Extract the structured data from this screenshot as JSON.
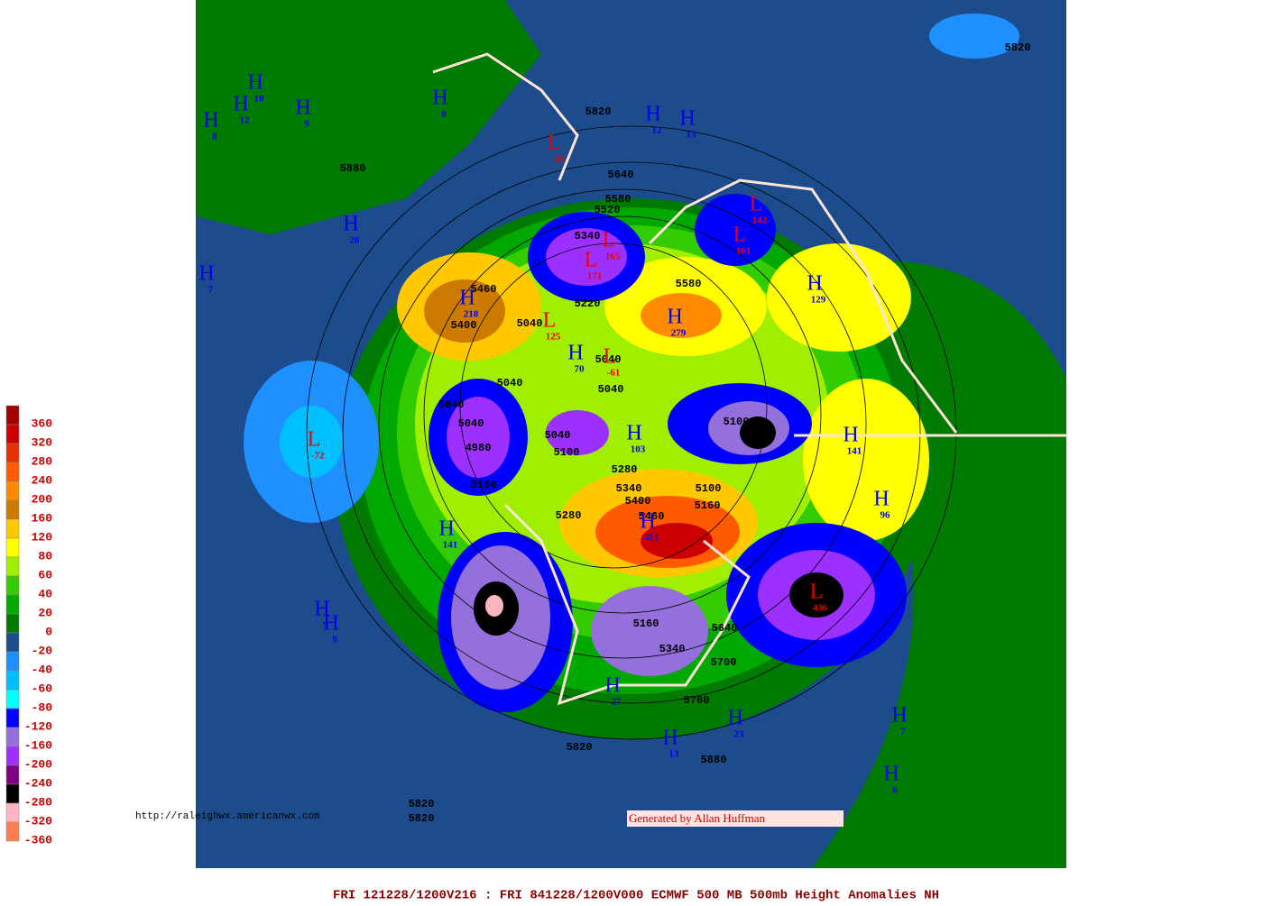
{
  "legend": {
    "labels": [
      "360",
      "320",
      "280",
      "240",
      "200",
      "160",
      "120",
      "80",
      "60",
      "40",
      "20",
      "0",
      "-20",
      "-40",
      "-60",
      "-80",
      "-120",
      "-160",
      "-200",
      "-240",
      "-280",
      "-320",
      "-360"
    ],
    "colors": [
      "#a00000",
      "#cc0000",
      "#e63000",
      "#ff5a00",
      "#ff8c00",
      "#cc7a00",
      "#ffc800",
      "#ffff00",
      "#a0ee00",
      "#33cc00",
      "#00a800",
      "#007a00",
      "#1c4c8c",
      "#1e90ff",
      "#00bfff",
      "#00ffff",
      "#0000ff",
      "#9370db",
      "#9b30ff",
      "#800080",
      "#000000",
      "#ffb6c1",
      "#ff7f50"
    ]
  },
  "centers": [
    {
      "letter": "H",
      "value": "10"
    },
    {
      "letter": "H",
      "value": "12"
    },
    {
      "letter": "H",
      "value": "8"
    },
    {
      "letter": "H",
      "value": "9"
    },
    {
      "letter": "H",
      "value": "8"
    },
    {
      "letter": "H",
      "value": "12"
    },
    {
      "letter": "H",
      "value": "13"
    },
    {
      "letter": "L",
      "value": "-56"
    },
    {
      "letter": "H",
      "value": "20"
    },
    {
      "letter": "H",
      "value": "7"
    },
    {
      "letter": "L",
      "value": "142"
    },
    {
      "letter": "L",
      "value": "161"
    },
    {
      "letter": "L",
      "value": "165"
    },
    {
      "letter": "L",
      "value": "171"
    },
    {
      "letter": "H",
      "value": "218"
    },
    {
      "letter": "H",
      "value": "279"
    },
    {
      "letter": "H",
      "value": "129"
    },
    {
      "letter": "L",
      "value": "125"
    },
    {
      "letter": "H",
      "value": "70"
    },
    {
      "letter": "L",
      "value": "-61"
    },
    {
      "letter": "H",
      "value": "103"
    },
    {
      "letter": "L",
      "value": "-72"
    },
    {
      "letter": "H",
      "value": "141"
    },
    {
      "letter": "H",
      "value": "96"
    },
    {
      "letter": "H",
      "value": "141"
    },
    {
      "letter": "H",
      "value": "451"
    },
    {
      "letter": "L",
      "value": "436"
    },
    {
      "letter": "H",
      "value": "9"
    },
    {
      "letter": "H",
      "value": "9"
    },
    {
      "letter": "H",
      "value": "27"
    },
    {
      "letter": "H",
      "value": "23"
    },
    {
      "letter": "H",
      "value": "13"
    },
    {
      "letter": "H",
      "value": "7"
    },
    {
      "letter": "H",
      "value": "6"
    }
  ],
  "contours": [
    "5820",
    "5820",
    "5880",
    "5640",
    "5580",
    "5520",
    "5340",
    "5460",
    "5400",
    "5580",
    "5220",
    "5040",
    "5040",
    "5040",
    "5040",
    "5040",
    "5100",
    "5040",
    "4980",
    "5160",
    "5040",
    "5100",
    "5280",
    "5340",
    "5400",
    "5460",
    "5100",
    "5160",
    "5280",
    "5160",
    "5340",
    "5700",
    "5640",
    "5760",
    "5820",
    "5880",
    "5820",
    "5820"
  ],
  "url": "http://raleighwx.americanwx.com",
  "credit": "Generated by Allan Huffman",
  "footer": "FRI 121228/1200V216 : FRI 841228/1200V000  ECMWF  500 MB 500mb Height Anomalies NH"
}
